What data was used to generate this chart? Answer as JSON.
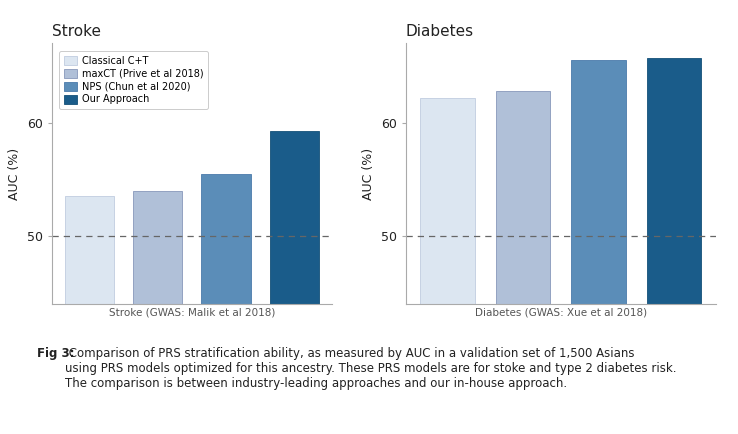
{
  "stroke_values": [
    53.5,
    54.0,
    55.5,
    59.3
  ],
  "diabetes_values": [
    62.2,
    62.8,
    65.5,
    65.7
  ],
  "colors": [
    "#dce6f1",
    "#b0c0d8",
    "#5b8db8",
    "#1a5c8a"
  ],
  "stroke_xlabel": "Stroke (GWAS: Malik et al 2018)",
  "diabetes_xlabel": "Diabetes (GWAS: Xue et al 2018)",
  "stroke_title": "Stroke",
  "diabetes_title": "Diabetes",
  "ylabel": "AUC (%)",
  "ylim_min": 44,
  "ylim_max": 67,
  "yticks": [
    50,
    60
  ],
  "dashed_line_y": 50,
  "caption_bold": "Fig 3:",
  "caption_normal": " Comparison of PRS stratification ability, as measured by AUC in a validation set of 1,500 Asians\nusing PRS models optimized for this ancestry. These PRS models are for stoke and type 2 diabetes risk.\nThe comparison is between industry-leading approaches and our in-house approach.",
  "background_color": "#ffffff",
  "legend_labels": [
    "Classical C+T",
    "maxCT (Prive et al 2018)",
    "NPS (Chun et al 2020)",
    "Our Approach"
  ],
  "bar_edge_colors": [
    "#c0cce0",
    "#8898bb",
    "#4a7aab",
    "#145078"
  ],
  "spine_color": "#aaaaaa",
  "dashed_color": "#666666",
  "text_color": "#222222"
}
